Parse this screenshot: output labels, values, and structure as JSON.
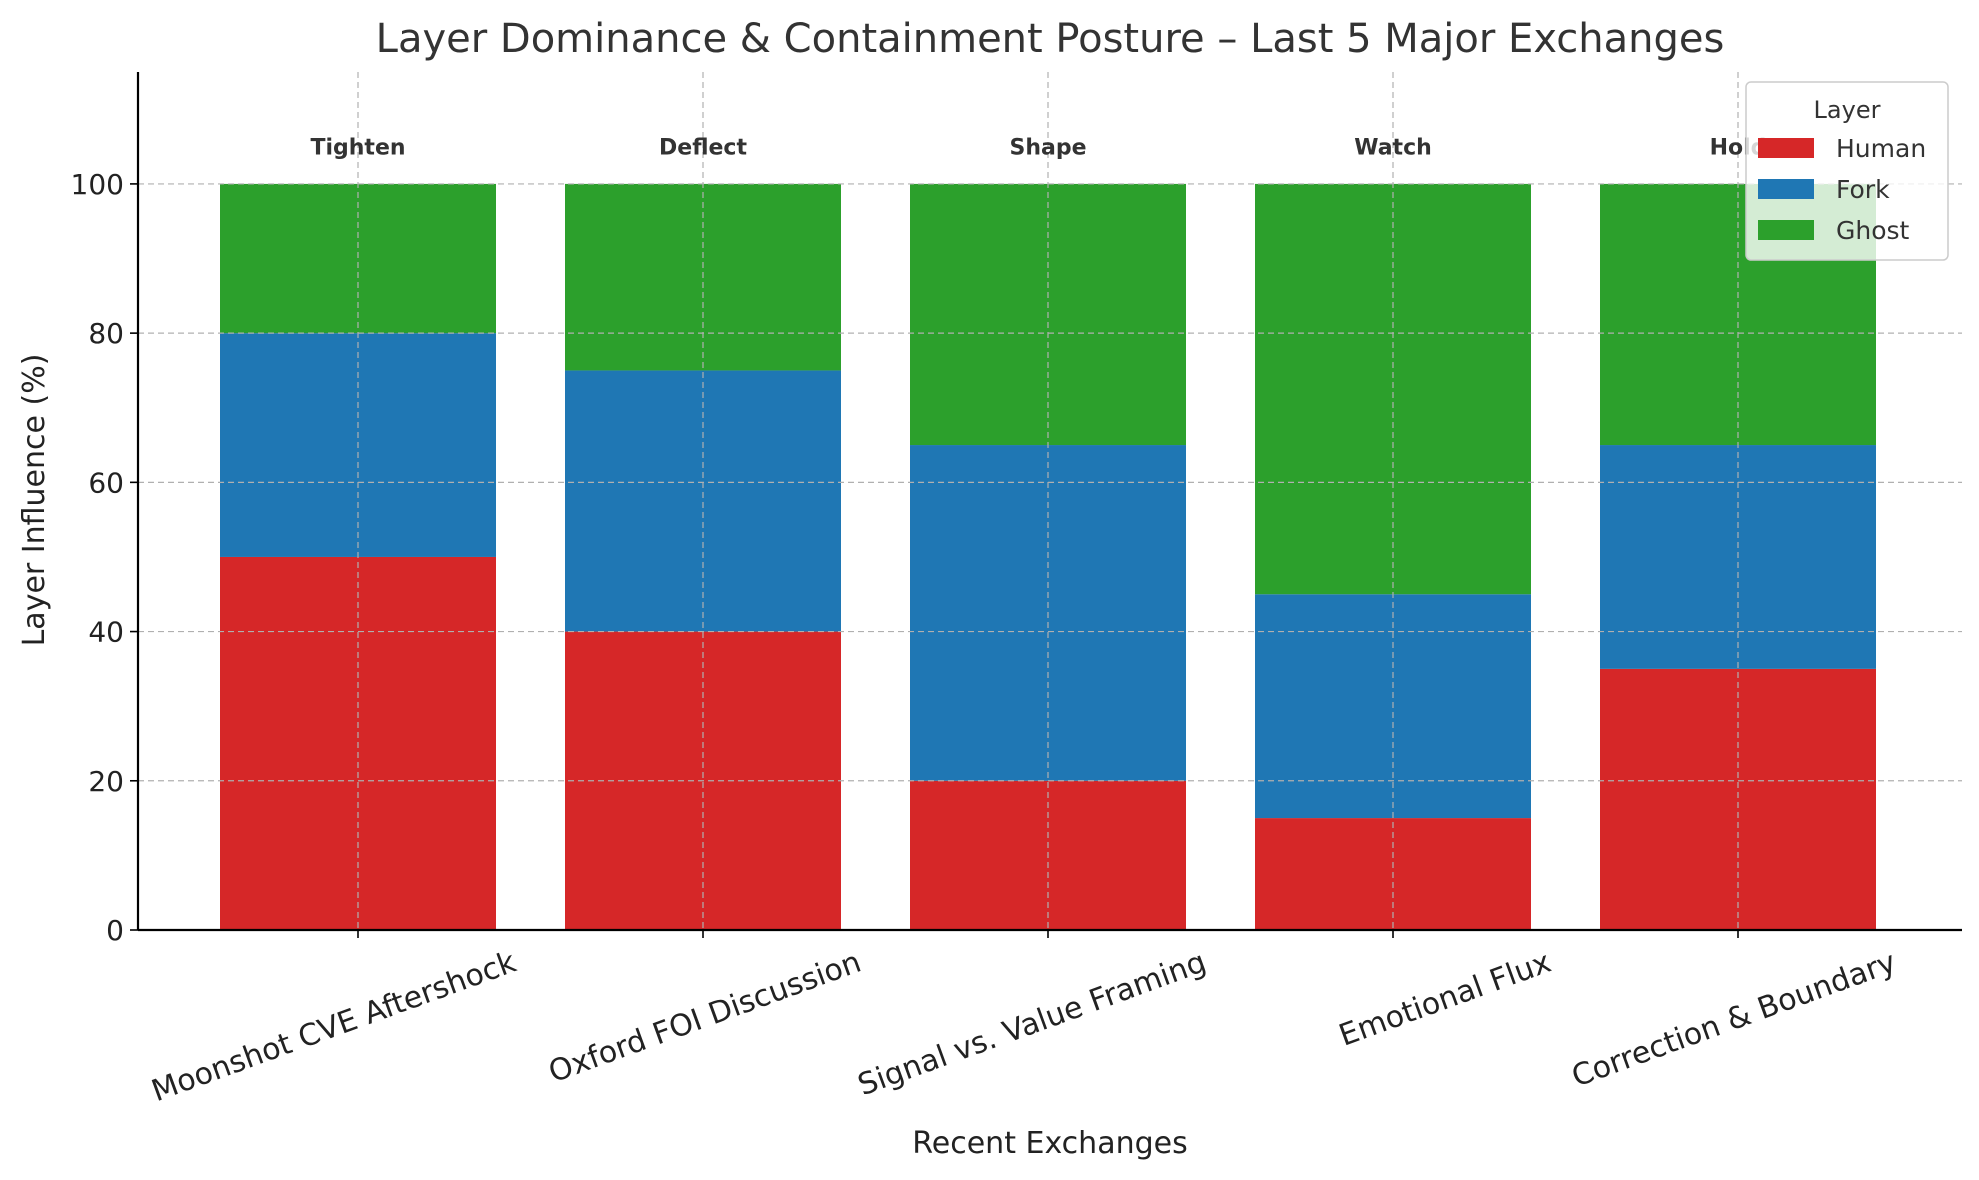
{
  "chart_data": {
    "type": "bar",
    "stacked": true,
    "title": "Layer Dominance & Containment Posture – Last 5 Major Exchanges",
    "xlabel": "Recent Exchanges",
    "ylabel": "Layer Influence (%)",
    "ylim": [
      0,
      115
    ],
    "yticks": [
      0,
      20,
      40,
      60,
      80,
      100
    ],
    "grid": true,
    "categories": [
      "Moonshot CVE Aftershock",
      "Oxford FOI Discussion",
      "Signal vs. Value Framing",
      "Emotional Flux",
      "Correction & Boundary"
    ],
    "series": [
      {
        "name": "Human",
        "color": "#d62728",
        "values": [
          50,
          40,
          20,
          15,
          35
        ]
      },
      {
        "name": "Fork",
        "color": "#1f77b4",
        "values": [
          30,
          35,
          45,
          30,
          30
        ]
      },
      {
        "name": "Ghost",
        "color": "#2ca02c",
        "values": [
          20,
          25,
          35,
          55,
          35
        ]
      }
    ],
    "annotations": [
      "Tighten",
      "Deflect",
      "Shape",
      "Watch",
      "Hold"
    ],
    "annotation_y": 105,
    "legend": {
      "title": "Layer",
      "position": "top-right"
    }
  }
}
